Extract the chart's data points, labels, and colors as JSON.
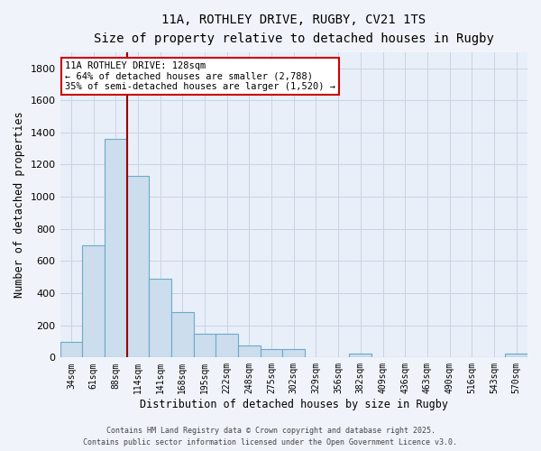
{
  "title_line1": "11A, ROTHLEY DRIVE, RUGBY, CV21 1TS",
  "title_line2": "Size of property relative to detached houses in Rugby",
  "xlabel": "Distribution of detached houses by size in Rugby",
  "ylabel": "Number of detached properties",
  "categories": [
    "34sqm",
    "61sqm",
    "88sqm",
    "114sqm",
    "141sqm",
    "168sqm",
    "195sqm",
    "222sqm",
    "248sqm",
    "275sqm",
    "302sqm",
    "329sqm",
    "356sqm",
    "382sqm",
    "409sqm",
    "436sqm",
    "463sqm",
    "490sqm",
    "516sqm",
    "543sqm",
    "570sqm"
  ],
  "values": [
    100,
    700,
    1360,
    1130,
    490,
    280,
    150,
    150,
    75,
    50,
    50,
    0,
    0,
    25,
    0,
    0,
    0,
    0,
    0,
    0,
    25
  ],
  "bar_color": "#ccdded",
  "bar_edge_color": "#6aaaca",
  "grid_color": "#c8d4e4",
  "background_color": "#e8eff8",
  "fig_background": "#f0f4fa",
  "vline_x": 2.5,
  "vline_color": "#990000",
  "annotation_text": "11A ROTHLEY DRIVE: 128sqm\n← 64% of detached houses are smaller (2,788)\n35% of semi-detached houses are larger (1,520) →",
  "annotation_box_facecolor": "#ffffff",
  "annotation_box_edgecolor": "#cc0000",
  "ylim": [
    0,
    1900
  ],
  "yticks": [
    0,
    200,
    400,
    600,
    800,
    1000,
    1200,
    1400,
    1600,
    1800
  ],
  "footer_line1": "Contains HM Land Registry data © Crown copyright and database right 2025.",
  "footer_line2": "Contains public sector information licensed under the Open Government Licence v3.0."
}
